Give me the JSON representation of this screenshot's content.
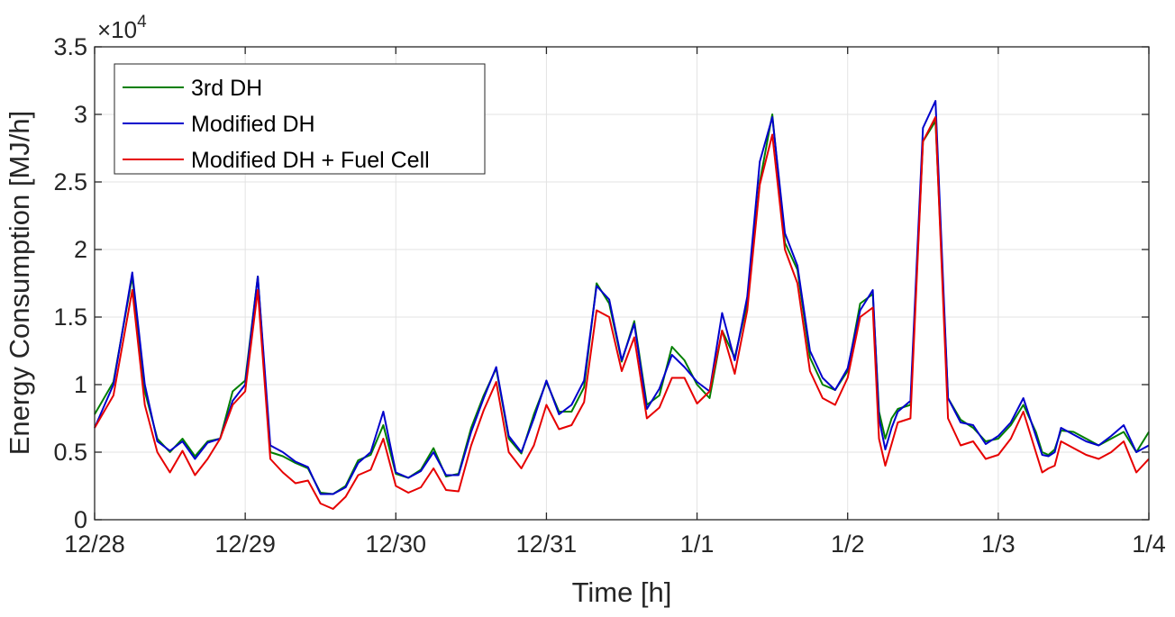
{
  "chart_data": {
    "type": "line",
    "title": "",
    "xlabel": "Time [h]",
    "ylabel": "Energy Consumption [MJ/h]",
    "y_multiplier_label": "×10",
    "y_multiplier_exponent": "4",
    "ylim": [
      0,
      35000
    ],
    "y_ticks": [
      0,
      5000,
      10000,
      15000,
      20000,
      25000,
      30000,
      35000
    ],
    "y_tick_labels": [
      "0",
      "0.5",
      "1",
      "1.5",
      "2",
      "2.5",
      "3",
      "3.5"
    ],
    "xlim": [
      0,
      168
    ],
    "x_ticks": [
      0,
      24,
      48,
      72,
      96,
      120,
      144,
      168
    ],
    "x_tick_labels": [
      "12/28",
      "12/29",
      "12/30",
      "12/31",
      "1/1",
      "1/2",
      "1/3",
      "1/4"
    ],
    "grid": true,
    "legend": "top-left",
    "series": [
      {
        "name": "3rd DH",
        "color": "#007F00",
        "x": [
          0,
          3,
          6,
          8,
          10,
          12,
          14,
          16,
          18,
          20,
          22,
          24,
          26,
          28,
          30,
          32,
          34,
          36,
          38,
          40,
          42,
          44,
          46,
          48,
          50,
          52,
          54,
          56,
          58,
          60,
          62,
          64,
          66,
          68,
          70,
          72,
          74,
          76,
          78,
          80,
          82,
          84,
          86,
          88,
          90,
          92,
          94,
          96,
          98,
          100,
          102,
          104,
          106,
          108,
          110,
          112,
          114,
          116,
          118,
          120,
          122,
          124,
          125,
          126,
          127,
          128,
          130,
          132,
          134,
          136,
          138,
          140,
          142,
          144,
          146,
          148,
          150,
          151,
          152,
          153,
          154,
          156,
          158,
          160,
          162,
          164,
          166,
          168
        ],
        "y": [
          7800,
          10200,
          18000,
          9500,
          6000,
          5000,
          6000,
          4700,
          5800,
          6000,
          9500,
          10300,
          18000,
          5000,
          4700,
          4200,
          3800,
          2000,
          1900,
          2500,
          4400,
          4800,
          7000,
          3400,
          3100,
          3700,
          5300,
          3200,
          3400,
          6800,
          9200,
          11200,
          6000,
          4900,
          7800,
          10200,
          8000,
          8000,
          9800,
          17500,
          16000,
          11700,
          14700,
          8500,
          9200,
          12800,
          11800,
          10000,
          9000,
          14000,
          12000,
          16000,
          25000,
          30000,
          20500,
          18500,
          12000,
          10000,
          9600,
          11000,
          16000,
          16700,
          8000,
          6000,
          7500,
          8200,
          8500,
          28000,
          29500,
          9000,
          7400,
          6800,
          5800,
          6000,
          7000,
          8500,
          6500,
          5000,
          4800,
          5200,
          6600,
          6500,
          6000,
          5500,
          6000,
          6500,
          5000,
          6500
        ]
      },
      {
        "name": "Modified DH",
        "color": "#0000CC",
        "x": [
          0,
          3,
          6,
          8,
          10,
          12,
          14,
          16,
          18,
          20,
          22,
          24,
          26,
          28,
          30,
          32,
          34,
          36,
          38,
          40,
          42,
          44,
          46,
          48,
          50,
          52,
          54,
          56,
          58,
          60,
          62,
          64,
          66,
          68,
          70,
          72,
          74,
          76,
          78,
          80,
          82,
          84,
          86,
          88,
          90,
          92,
          94,
          96,
          98,
          100,
          102,
          104,
          106,
          108,
          110,
          112,
          114,
          116,
          118,
          120,
          122,
          124,
          125,
          126,
          127,
          128,
          130,
          132,
          134,
          136,
          138,
          140,
          142,
          144,
          146,
          148,
          150,
          151,
          152,
          153,
          154,
          156,
          158,
          160,
          162,
          164,
          166,
          168
        ],
        "y": [
          6800,
          10000,
          18300,
          10000,
          5800,
          5100,
          5800,
          4500,
          5700,
          6000,
          8800,
          10000,
          18000,
          5500,
          5000,
          4300,
          3900,
          1900,
          1900,
          2400,
          4200,
          5000,
          8000,
          3500,
          3100,
          3600,
          5000,
          3300,
          3300,
          6500,
          9000,
          11300,
          6200,
          5000,
          7500,
          10300,
          7800,
          8500,
          10300,
          17300,
          16300,
          11800,
          14500,
          8200,
          9700,
          12200,
          11300,
          10200,
          9500,
          15300,
          11800,
          16500,
          26500,
          29800,
          21200,
          18800,
          12500,
          10500,
          9600,
          11200,
          15500,
          17000,
          7500,
          5200,
          6800,
          8000,
          8800,
          29000,
          31000,
          9000,
          7200,
          7000,
          5600,
          6200,
          7200,
          9000,
          6200,
          4800,
          4700,
          5000,
          6800,
          6300,
          5800,
          5500,
          6200,
          7000,
          5000,
          5500
        ]
      },
      {
        "name": "Modified DH + Fuel Cell",
        "color": "#E60000",
        "x": [
          0,
          3,
          6,
          8,
          10,
          12,
          14,
          16,
          18,
          20,
          22,
          24,
          26,
          28,
          30,
          32,
          34,
          36,
          38,
          40,
          42,
          44,
          46,
          48,
          50,
          52,
          54,
          56,
          58,
          60,
          62,
          64,
          66,
          68,
          70,
          72,
          74,
          76,
          78,
          80,
          82,
          84,
          86,
          88,
          90,
          92,
          94,
          96,
          98,
          100,
          102,
          104,
          106,
          108,
          110,
          112,
          114,
          116,
          118,
          120,
          122,
          124,
          125,
          126,
          127,
          128,
          130,
          132,
          134,
          136,
          138,
          140,
          142,
          144,
          146,
          148,
          150,
          151,
          152,
          153,
          154,
          156,
          158,
          160,
          162,
          164,
          166,
          168
        ],
        "y": [
          6800,
          9200,
          17000,
          8500,
          5000,
          3500,
          5100,
          3300,
          4500,
          6000,
          8500,
          9500,
          17000,
          4500,
          3500,
          2700,
          2900,
          1200,
          800,
          1700,
          3300,
          3700,
          6000,
          2500,
          2000,
          2400,
          3800,
          2200,
          2100,
          5500,
          8100,
          10200,
          5000,
          3800,
          5500,
          8500,
          6700,
          7000,
          8700,
          15500,
          15000,
          11000,
          13500,
          7500,
          8300,
          10500,
          10500,
          8600,
          9500,
          14000,
          10800,
          15500,
          24800,
          28500,
          20000,
          17500,
          11000,
          9000,
          8500,
          10500,
          15000,
          15700,
          6000,
          4000,
          5600,
          7200,
          7500,
          28000,
          29800,
          7500,
          5500,
          5800,
          4500,
          4800,
          6000,
          8000,
          5000,
          3500,
          3800,
          4000,
          5800,
          5300,
          4800,
          4500,
          5000,
          5800,
          3500,
          4500
        ]
      }
    ]
  }
}
